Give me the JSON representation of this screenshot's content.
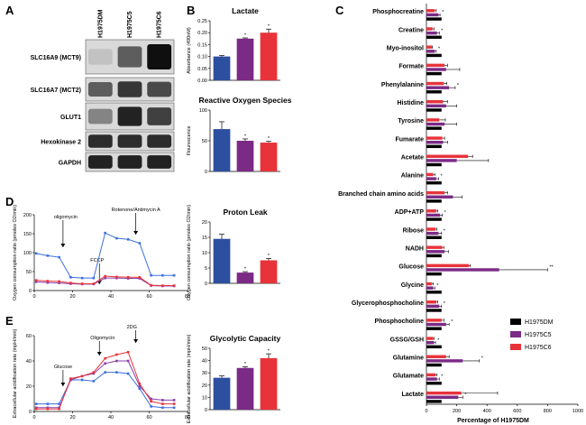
{
  "panels": {
    "A": "A",
    "B": "B",
    "C": "C",
    "D": "D",
    "E": "E"
  },
  "blot": {
    "lanes": [
      "H1975DM",
      "H1975C5",
      "H1975C6"
    ],
    "rows": [
      {
        "label": "SLC16A9 (MCT9)",
        "bands": [
          0.03,
          0.55,
          0.95
        ]
      },
      {
        "label": "SLC16A7 (MCT2)",
        "bands": [
          0.55,
          0.75,
          0.65
        ]
      },
      {
        "label": "GLUT1",
        "bands": [
          0.35,
          0.85,
          0.7
        ]
      },
      {
        "label": "Hexokinase 2",
        "bands": [
          0.8,
          0.8,
          0.8
        ]
      },
      {
        "label": "GAPDH",
        "bands": [
          0.85,
          0.85,
          0.85
        ]
      }
    ]
  },
  "colors": {
    "dm": "#2d4fa0",
    "c5": "#7b2a86",
    "c6": "#e8333a",
    "black": "#000000",
    "blue_line": "#3d6fe0",
    "purple_line": "#8a3fa8",
    "red_line": "#e8333a"
  },
  "chart_data": [
    {
      "id": "lactate",
      "type": "bar",
      "title": "Lactate",
      "ylabel": "Absorbance (490nM)",
      "categories": [
        "H1975DM",
        "H1975C5",
        "H1975C6"
      ],
      "values": [
        0.1,
        0.175,
        0.2
      ],
      "errors": [
        0.004,
        0.003,
        0.015
      ],
      "sig": [
        "",
        "*",
        "*"
      ],
      "ylim": [
        0,
        0.25
      ],
      "yticks": [
        "0.00",
        "0.05",
        "0.10",
        "0.15",
        "0.20",
        "0.25"
      ]
    },
    {
      "id": "ros",
      "type": "bar",
      "title": "Reactive Oxygen Species",
      "ylabel": "Flourescence",
      "categories": [
        "H1975DM",
        "H1975C5",
        "H1975C6"
      ],
      "values": [
        69,
        50,
        47
      ],
      "errors": [
        12,
        3,
        2
      ],
      "sig": [
        "",
        "*",
        "*"
      ],
      "ylim": [
        0,
        100
      ],
      "yticks": [
        "0",
        "50",
        "100"
      ]
    },
    {
      "id": "proton",
      "type": "bar",
      "title": "Proton Leak",
      "ylabel": "Oxygen consumption ratio (pmoles O2/min)",
      "categories": [
        "H1975DM",
        "H1975C5",
        "H1975C6"
      ],
      "values": [
        14.5,
        3.5,
        7.5
      ],
      "errors": [
        1.5,
        0.3,
        0.6
      ],
      "sig": [
        "",
        "*",
        "*"
      ],
      "ylim": [
        0,
        20
      ],
      "yticks": [
        "0",
        "5",
        "10",
        "15",
        "20"
      ]
    },
    {
      "id": "glyco",
      "type": "bar",
      "title": "Glycolytic Capacity",
      "ylabel": "Extracellular acidification rate (mpH/min)",
      "categories": [
        "H1975DM",
        "H1975C5",
        "H1975C6"
      ],
      "values": [
        26,
        34,
        42
      ],
      "errors": [
        1.5,
        1,
        3.5
      ],
      "sig": [
        "",
        "*",
        "*"
      ],
      "ylim": [
        0,
        50
      ],
      "yticks": [
        "0",
        "10",
        "20",
        "30",
        "40",
        "50"
      ]
    },
    {
      "id": "ocr",
      "type": "line",
      "ylabel": "Oxygen consumption ratio (pmoles O2/min)",
      "xlim": [
        0,
        80
      ],
      "ylim": [
        0,
        200
      ],
      "xticks": [
        "0",
        "20",
        "40",
        "60",
        "80"
      ],
      "yticks": [
        "0",
        "50",
        "100",
        "150",
        "200"
      ],
      "annotations": [
        {
          "label": "oligomycin",
          "x": 15
        },
        {
          "label": "FCCP",
          "x": 34
        },
        {
          "label": "Rotenone/Antimycin A",
          "x": 53
        }
      ],
      "x": [
        1,
        7,
        13,
        19,
        25,
        31,
        37,
        43,
        49,
        55,
        61,
        67,
        73
      ],
      "series": [
        {
          "name": "H1975DM",
          "values": [
            98,
            92,
            88,
            35,
            33,
            33,
            152,
            138,
            135,
            125,
            40,
            40,
            40
          ]
        },
        {
          "name": "H1975C5",
          "values": [
            23,
            21,
            20,
            18,
            17,
            17,
            33,
            33,
            32,
            32,
            13,
            12,
            12
          ]
        },
        {
          "name": "H1975C6",
          "values": [
            27,
            25,
            24,
            20,
            18,
            18,
            38,
            36,
            35,
            35,
            14,
            13,
            13
          ]
        }
      ]
    },
    {
      "id": "ecar",
      "type": "line",
      "ylabel": "Extracellular acidification rate (mpH/min)",
      "xlim": [
        0,
        80
      ],
      "ylim": [
        0,
        60
      ],
      "xticks": [
        "0",
        "20",
        "40",
        "60",
        "80"
      ],
      "yticks": [
        "0",
        "20",
        "40",
        "60"
      ],
      "annotations": [
        {
          "label": "Glucose",
          "x": 15
        },
        {
          "label": "Oligomycin",
          "x": 34
        },
        {
          "label": "2DG",
          "x": 53
        }
      ],
      "x": [
        1,
        7,
        13,
        19,
        25,
        31,
        37,
        43,
        49,
        55,
        61,
        67,
        73
      ],
      "series": [
        {
          "name": "H1975DM",
          "values": [
            6,
            6,
            6,
            25,
            25,
            24,
            31,
            31,
            30,
            18,
            4,
            3,
            3
          ]
        },
        {
          "name": "H1975C5",
          "values": [
            3,
            3,
            3,
            25,
            28,
            30,
            38,
            40,
            40,
            20,
            10,
            9,
            9
          ]
        },
        {
          "name": "H1975C6",
          "values": [
            2,
            2,
            2,
            26,
            28,
            31,
            42,
            45,
            47,
            22,
            8,
            6,
            6
          ]
        }
      ]
    },
    {
      "id": "metabolites",
      "type": "hbar",
      "xlabel": "Percentage of H1975DM",
      "xlim": [
        0,
        1000
      ],
      "xticks": [
        "0",
        "200",
        "400",
        "600",
        "800",
        "1000"
      ],
      "legend": [
        "H1975DM",
        "H1975C5",
        "H1975C6"
      ],
      "categories": [
        "Phosphocreatine",
        "Creatine",
        "Myo-inositol",
        "Formate",
        "Phenylalanine",
        "Histidine",
        "Tyrosine",
        "Fumarate",
        "Acetate",
        "Alanine",
        "Branched chain amino acids",
        "ADP+ATP",
        "Ribose",
        "NADH",
        "Glucose",
        "Glycine",
        "Glycerophosphocholine",
        "Phosphocholine",
        "GSSG/GSH",
        "Glutamine",
        "Glutamate",
        "Lactate"
      ],
      "series": [
        {
          "name": "H1975DM",
          "values": [
            100,
            100,
            100,
            100,
            100,
            100,
            100,
            100,
            100,
            100,
            100,
            100,
            100,
            100,
            100,
            100,
            100,
            100,
            100,
            100,
            100,
            100
          ]
        },
        {
          "name": "H1975C5",
          "values": [
            80,
            70,
            55,
            130,
            150,
            130,
            120,
            110,
            200,
            65,
            175,
            90,
            80,
            120,
            480,
            45,
            85,
            130,
            50,
            240,
            70,
            210
          ]
        },
        {
          "name": "H1975C6",
          "values": [
            55,
            40,
            35,
            120,
            115,
            110,
            85,
            105,
            275,
            45,
            120,
            65,
            60,
            105,
            280,
            35,
            65,
            100,
            45,
            130,
            60,
            230
          ]
        }
      ],
      "errors": [
        [
          0,
          0,
          0,
          0,
          0,
          0,
          0,
          0,
          0,
          0,
          0,
          0,
          0,
          0,
          0,
          0,
          0,
          0,
          0,
          0,
          0,
          0
        ],
        [
          10,
          15,
          10,
          90,
          40,
          70,
          80,
          30,
          210,
          15,
          60,
          15,
          20,
          25,
          320,
          10,
          15,
          20,
          10,
          110,
          15,
          30
        ],
        [
          10,
          10,
          5,
          20,
          20,
          30,
          40,
          15,
          30,
          10,
          20,
          10,
          10,
          10,
          10,
          10,
          10,
          15,
          5,
          20,
          10,
          240
        ]
      ],
      "stars": [
        "*",
        "*",
        "*",
        "",
        "*",
        "",
        "",
        "",
        "",
        "*",
        "",
        "*",
        "*",
        "",
        "**",
        "*",
        "*",
        "*",
        "*",
        "*",
        "*",
        "*"
      ]
    }
  ]
}
